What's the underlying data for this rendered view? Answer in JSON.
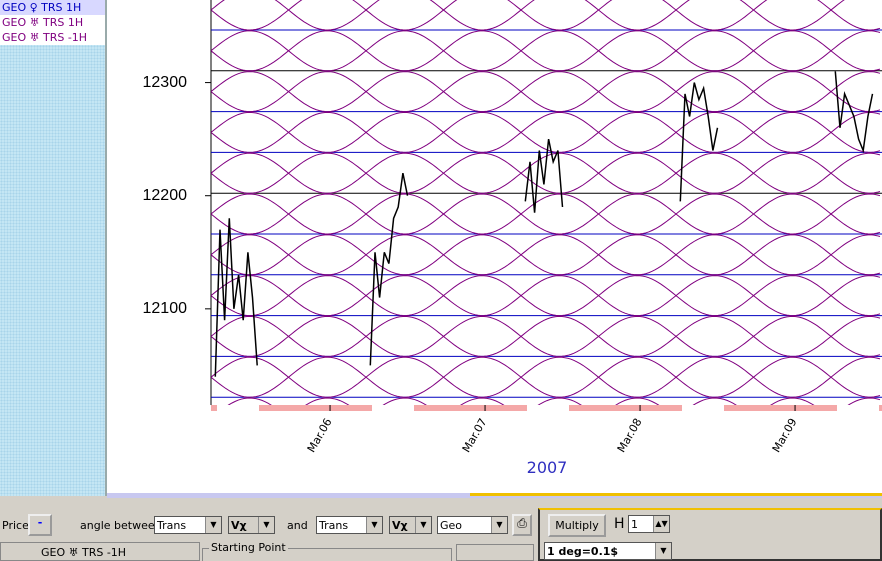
{
  "sidebar": {
    "items": [
      "GEO ♀ TRS  1H",
      "GEO ♅ TRS  1H",
      "GEO ♅ TRS -1H"
    ]
  },
  "chart_data": {
    "type": "line",
    "xlabel": "2007",
    "x": [
      5.26,
      5.29,
      5.32,
      5.35,
      5.38,
      5.41,
      5.44,
      5.47,
      5.5,
      5.53,
      null,
      6.26,
      6.29,
      6.32,
      6.35,
      6.38,
      6.41,
      6.44,
      6.47,
      6.5,
      null,
      7.26,
      7.29,
      7.32,
      7.35,
      7.38,
      7.41,
      7.44,
      7.47,
      7.5,
      null,
      8.26,
      8.29,
      8.32,
      8.35,
      8.38,
      8.41,
      8.44,
      8.47,
      8.5,
      null,
      9.26,
      9.29,
      9.32,
      9.35,
      9.38,
      9.41,
      9.44,
      9.47,
      9.5
    ],
    "values": [
      12040,
      12170,
      12090,
      12180,
      12100,
      12130,
      12090,
      12150,
      12110,
      12050,
      null,
      12050,
      12150,
      12110,
      12150,
      12140,
      12180,
      12190,
      12220,
      12200,
      null,
      12195,
      12230,
      12185,
      12240,
      12210,
      12250,
      12230,
      12240,
      12190,
      null,
      12195,
      12290,
      12270,
      12300,
      12285,
      12295,
      12270,
      12240,
      12260,
      null,
      12310,
      12260,
      12290,
      12280,
      12270,
      12250,
      12240,
      12270,
      12290
    ],
    "color": "#000000",
    "xlim": [
      5.232,
      9.561
    ],
    "ylim": [
      12015,
      12373
    ],
    "xticks": [
      {
        "value": 6,
        "label": "Mar.06"
      },
      {
        "value": 7,
        "label": "Mar.07"
      },
      {
        "value": 8,
        "label": "Mar.08"
      },
      {
        "value": 9,
        "label": "Mar.09"
      }
    ],
    "yticks": [
      12100,
      12200,
      12300
    ]
  },
  "toolbar": {
    "price_label": "Price:",
    "price_button": "-",
    "angle_label": "angle between",
    "select1": "Trans",
    "func1": "Vχ",
    "and_label": "and",
    "select2": "Trans",
    "func2": "Vχ",
    "select3": "Geo",
    "multiply": "Multiply",
    "h_label": "H",
    "h_value": "1",
    "tab": "GEO ♅ TRS -1H",
    "group": "Starting Point",
    "scale": "1 deg=0.1$"
  }
}
